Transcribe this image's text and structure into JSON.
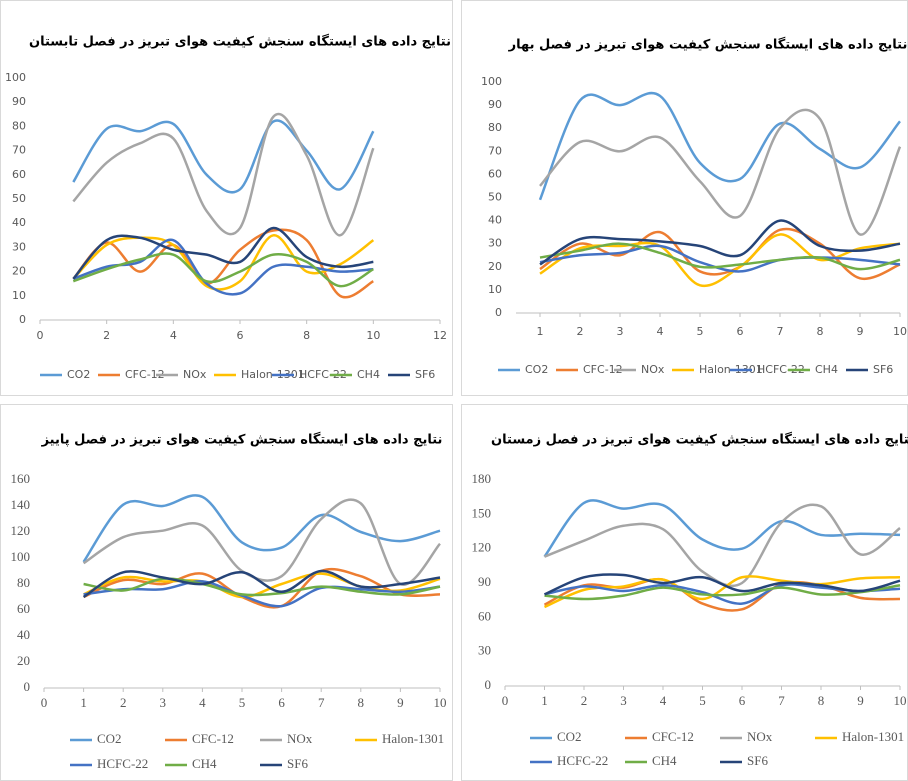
{
  "chart_data": [
    {
      "type": "line",
      "title": "نتایج داده های ایستگاه سنجش کیفیت هوای تبریز در فصل تابستان",
      "x": [
        1,
        2,
        3,
        4,
        5,
        6,
        7,
        8,
        9,
        10
      ],
      "xlim": [
        0,
        12
      ],
      "xticks": [
        0,
        2,
        4,
        6,
        8,
        10,
        12
      ],
      "ylim": [
        0,
        100
      ],
      "yticks": [
        0,
        10,
        20,
        30,
        40,
        50,
        60,
        70,
        80,
        90,
        100
      ],
      "smooth": true,
      "grid": false,
      "legend": "bottom",
      "series": [
        {
          "name": "CO2",
          "color": "#5b9bd5",
          "values": [
            57,
            79,
            78,
            81,
            60,
            54,
            82,
            70,
            54,
            78
          ]
        },
        {
          "name": "CFC-12",
          "color": "#ed7d31",
          "values": [
            17,
            32,
            20,
            31,
            15,
            29,
            37,
            33,
            10,
            16
          ]
        },
        {
          "name": "NOx",
          "color": "#a5a5a5",
          "values": [
            49,
            65,
            73,
            75,
            45,
            38,
            84,
            68,
            35,
            71
          ]
        },
        {
          "name": "Halon-1301",
          "color": "#ffc000",
          "values": [
            17,
            31,
            34,
            31,
            14,
            16,
            35,
            20,
            23,
            33
          ]
        },
        {
          "name": "HCFC-22",
          "color": "#4472c4",
          "values": [
            17,
            22,
            24,
            33,
            15,
            11,
            22,
            22,
            20,
            21
          ]
        },
        {
          "name": "CH4",
          "color": "#70ad47",
          "values": [
            16,
            21,
            25,
            27,
            16,
            20,
            27,
            24,
            14,
            21
          ]
        },
        {
          "name": "SF6",
          "color": "#264478",
          "values": [
            17,
            33,
            34,
            29,
            27,
            24,
            38,
            26,
            22,
            24
          ]
        }
      ]
    },
    {
      "type": "line",
      "title": "نتایج داده های ایستگاه سنجش کیفیت هوای تبریز در فصل بهار",
      "x": [
        1,
        2,
        3,
        4,
        5,
        6,
        7,
        8,
        9,
        10
      ],
      "xlim": [
        0.4,
        10
      ],
      "xticks": [
        1,
        2,
        3,
        4,
        5,
        6,
        7,
        8,
        9,
        10
      ],
      "ylim": [
        0,
        100
      ],
      "yticks": [
        0,
        10,
        20,
        30,
        40,
        50,
        60,
        70,
        80,
        90,
        100
      ],
      "smooth": true,
      "grid": false,
      "legend": "bottom",
      "series": [
        {
          "name": "CO2",
          "color": "#5b9bd5",
          "values": [
            49,
            92,
            90,
            94,
            65,
            58,
            82,
            71,
            63,
            83
          ]
        },
        {
          "name": "CFC-12",
          "color": "#ed7d31",
          "values": [
            19,
            30,
            25,
            35,
            18,
            20,
            36,
            30,
            15,
            21
          ]
        },
        {
          "name": "NOx",
          "color": "#a5a5a5",
          "values": [
            55,
            74,
            70,
            76,
            57,
            42,
            80,
            84,
            34,
            72
          ]
        },
        {
          "name": "Halon-1301",
          "color": "#ffc000",
          "values": [
            17,
            28,
            29,
            29,
            12,
            20,
            34,
            23,
            28,
            30
          ]
        },
        {
          "name": "HCFC-22",
          "color": "#4472c4",
          "values": [
            22,
            25,
            26,
            29,
            22,
            18,
            23,
            24,
            23,
            21
          ]
        },
        {
          "name": "CH4",
          "color": "#70ad47",
          "values": [
            24,
            27,
            30,
            26,
            20,
            21,
            23,
            24,
            19,
            23
          ]
        },
        {
          "name": "SF6",
          "color": "#264478",
          "values": [
            21,
            32,
            32,
            31,
            29,
            25,
            40,
            29,
            27,
            30
          ]
        }
      ]
    },
    {
      "type": "line",
      "title": "نتایج داده های ایستگاه سنجش کیفیت هوای تبریز در فصل پاییز",
      "x": [
        1,
        2,
        3,
        4,
        5,
        6,
        7,
        8,
        9,
        10
      ],
      "xlim": [
        0,
        10
      ],
      "xticks": [
        0,
        1,
        2,
        3,
        4,
        5,
        6,
        7,
        8,
        9,
        10
      ],
      "ylim": [
        0,
        160
      ],
      "yticks": [
        0,
        20,
        40,
        60,
        80,
        100,
        120,
        140,
        160
      ],
      "smooth": true,
      "grid": false,
      "legend": "bottom",
      "series": [
        {
          "name": "CO2",
          "color": "#5b9bd5",
          "values": [
            97,
            141,
            140,
            147,
            112,
            108,
            133,
            120,
            113,
            121
          ]
        },
        {
          "name": "CFC-12",
          "color": "#ed7d31",
          "values": [
            70,
            83,
            80,
            88,
            70,
            63,
            90,
            86,
            72,
            72
          ]
        },
        {
          "name": "NOx",
          "color": "#a5a5a5",
          "values": [
            96,
            116,
            121,
            125,
            90,
            86,
            130,
            142,
            80,
            111
          ]
        },
        {
          "name": "Halon-1301",
          "color": "#ffc000",
          "values": [
            72,
            85,
            82,
            82,
            70,
            80,
            88,
            78,
            75,
            84
          ]
        },
        {
          "name": "HCFC-22",
          "color": "#4472c4",
          "values": [
            72,
            76,
            76,
            82,
            71,
            63,
            77,
            76,
            74,
            78
          ]
        },
        {
          "name": "CH4",
          "color": "#70ad47",
          "values": [
            80,
            75,
            84,
            80,
            72,
            73,
            78,
            74,
            72,
            78
          ]
        },
        {
          "name": "SF6",
          "color": "#264478",
          "values": [
            70,
            89,
            85,
            80,
            89,
            74,
            90,
            78,
            80,
            85
          ]
        }
      ]
    },
    {
      "type": "line",
      "title": "نتایج داده های ایستگاه سنجش کیفیت هوای تبریز در فصل زمستان",
      "x": [
        1,
        2,
        3,
        4,
        5,
        6,
        7,
        8,
        9,
        10
      ],
      "xlim": [
        0,
        10
      ],
      "xticks": [
        0,
        1,
        2,
        3,
        4,
        5,
        6,
        7,
        8,
        9,
        10
      ],
      "ylim": [
        0,
        180
      ],
      "yticks": [
        0,
        30,
        60,
        90,
        120,
        150,
        180
      ],
      "smooth": true,
      "grid": false,
      "legend": "bottom",
      "series": [
        {
          "name": "CO2",
          "color": "#5b9bd5",
          "values": [
            113,
            160,
            155,
            158,
            128,
            120,
            144,
            132,
            133,
            132
          ]
        },
        {
          "name": "CFC-12",
          "color": "#ed7d31",
          "values": [
            71,
            88,
            86,
            93,
            72,
            67,
            89,
            88,
            77,
            76
          ]
        },
        {
          "name": "NOx",
          "color": "#a5a5a5",
          "values": [
            113,
            127,
            140,
            137,
            100,
            90,
            143,
            157,
            115,
            138
          ]
        },
        {
          "name": "Halon-1301",
          "color": "#ffc000",
          "values": [
            69,
            84,
            87,
            93,
            76,
            95,
            92,
            89,
            94,
            95
          ]
        },
        {
          "name": "HCFC-22",
          "color": "#4472c4",
          "values": [
            80,
            87,
            83,
            88,
            82,
            72,
            88,
            86,
            83,
            85
          ]
        },
        {
          "name": "CH4",
          "color": "#70ad47",
          "values": [
            79,
            76,
            79,
            86,
            80,
            80,
            86,
            80,
            82,
            88
          ]
        },
        {
          "name": "SF6",
          "color": "#264478",
          "values": [
            80,
            95,
            97,
            90,
            95,
            83,
            90,
            88,
            83,
            92
          ]
        }
      ]
    }
  ]
}
